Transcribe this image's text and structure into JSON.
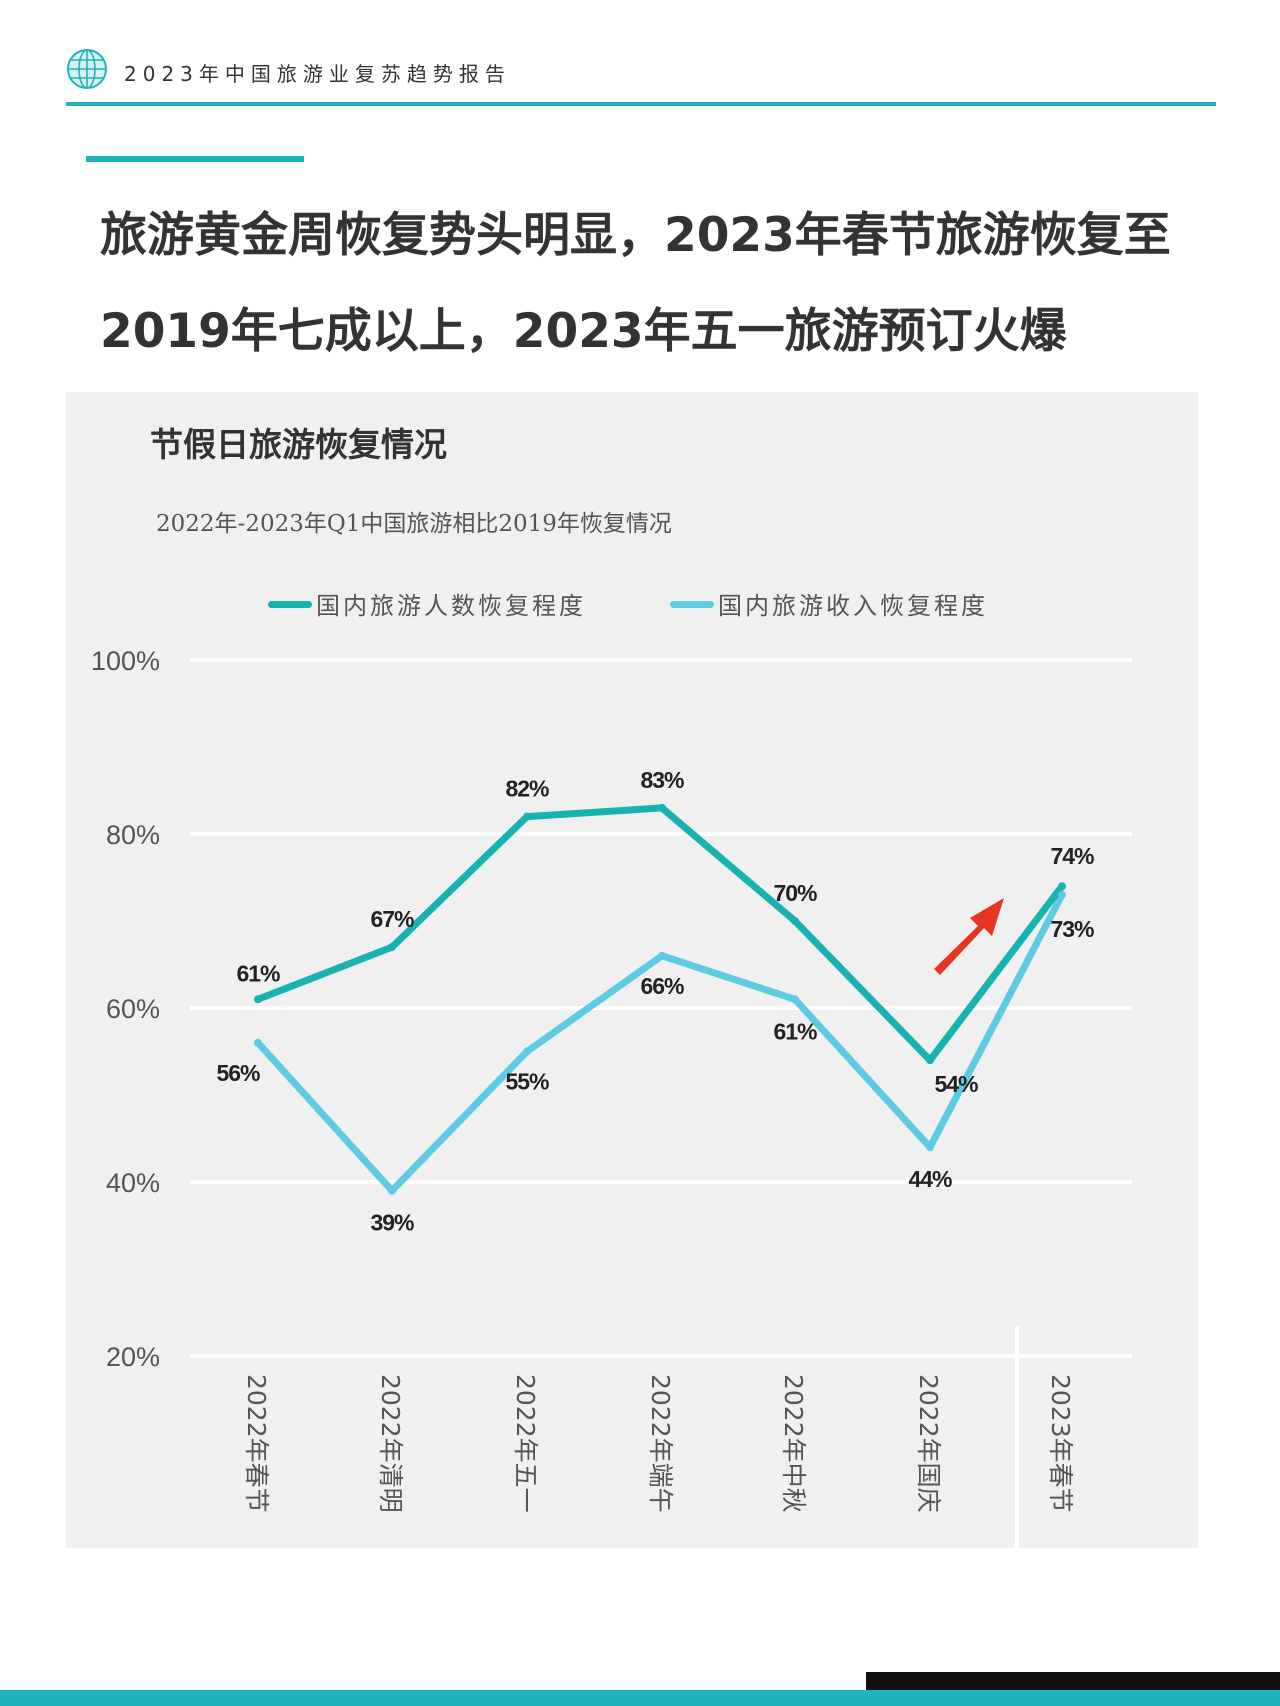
{
  "header": {
    "report_title": "2023年中国旅游业复苏趋势报告",
    "logo_icon": "globe-icon"
  },
  "headline": "旅游黄金周恢复势头明显，2023年春节旅游恢复至2019年七成以上，2023年五一旅游预订火爆",
  "panel": {
    "title": "节假日旅游恢复情况"
  },
  "colors": {
    "accent": "#1fb3bd",
    "series_visitors": "#17b3b1",
    "series_revenue": "#5ecbe3",
    "arrow": "#e63322"
  },
  "chart_data": {
    "type": "line",
    "title": "2022年-2023年Q1中国旅游相比2019年恢复情况",
    "categories": [
      "2022年春节",
      "2022年清明",
      "2022年五一",
      "2022年端午",
      "2022年中秋",
      "2022年国庆",
      "2023年春节"
    ],
    "series": [
      {
        "name": "国内旅游人数恢复程度",
        "values": [
          61,
          67,
          82,
          83,
          70,
          54,
          74
        ],
        "labels": [
          "61%",
          "67%",
          "82%",
          "83%",
          "70%",
          "54%",
          "74%"
        ]
      },
      {
        "name": "国内旅游收入恢复程度",
        "values": [
          56,
          39,
          55,
          66,
          61,
          44,
          73
        ],
        "labels": [
          "56%",
          "39%",
          "55%",
          "66%",
          "61%",
          "44%",
          "73%"
        ]
      }
    ],
    "y_ticks": [
      "100%",
      "80%",
      "60%",
      "40%",
      "20%"
    ],
    "y_tick_values": [
      100,
      80,
      60,
      40,
      20
    ],
    "ylim": [
      20,
      100
    ],
    "grid": true,
    "legend": "top"
  }
}
